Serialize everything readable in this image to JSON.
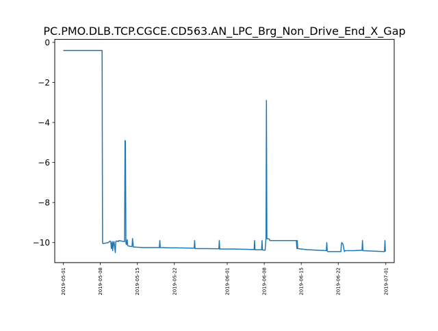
{
  "chart_data": {
    "type": "line",
    "title": "PC.PMO.DLB.TCP.CGCE.CD563.AN_LPC_Brg_Non_Drive_End_X_Gap",
    "xlabel": "",
    "ylabel": "",
    "ylim": [
      -11.0,
      0.15
    ],
    "xlim": [
      "2019-04-29T09:00",
      "2019-07-02T14:00"
    ],
    "yticks": [
      0,
      -2,
      -4,
      -6,
      -8,
      -10
    ],
    "xticks": [
      "2019-05-01",
      "2019-05-08",
      "2019-05-15",
      "2019-05-22",
      "2019-06-01",
      "2019-06-08",
      "2019-06-15",
      "2019-06-22",
      "2019-07-01"
    ],
    "grid": false,
    "line_color": "#1f77b4",
    "series": [
      {
        "x": [
          "2019-05-01T00:00",
          "2019-05-08T08:00",
          "2019-05-08T10:00",
          "2019-05-08T12:00",
          "2019-05-09T12:00",
          "2019-05-09T20:00",
          "2019-05-10T00:00",
          "2019-05-10T02:00",
          "2019-05-10T06:00",
          "2019-05-10T08:00",
          "2019-05-10T12:00",
          "2019-05-10T14:00",
          "2019-05-10T20:00",
          "2019-05-10T22:00",
          "2019-05-11T02:00",
          "2019-05-11T10:00",
          "2019-05-11T12:00",
          "2019-05-12T14:00",
          "2019-05-12T16:00",
          "2019-05-12T18:00",
          "2019-05-12T20:00",
          "2019-05-12T22:00",
          "2019-05-13T02:00",
          "2019-05-13T04:00",
          "2019-05-13T10:00",
          "2019-05-14T00:00",
          "2019-05-14T02:00",
          "2019-05-14T06:00",
          "2019-05-16T00:00",
          "2019-05-18T00:00",
          "2019-05-19T04:00",
          "2019-05-19T06:00",
          "2019-05-19T08:00",
          "2019-05-21T00:00",
          "2019-05-24T00:00",
          "2019-05-25T18:00",
          "2019-05-25T20:00",
          "2019-05-25T22:00",
          "2019-05-28T00:00",
          "2019-05-30T10:00",
          "2019-05-30T12:00",
          "2019-05-30T14:00",
          "2019-06-02T00:00",
          "2019-06-05T00:00",
          "2019-06-06T02:00",
          "2019-06-06T04:00",
          "2019-06-06T06:00",
          "2019-06-07T12:00",
          "2019-06-07T14:00",
          "2019-06-07T16:00",
          "2019-06-08T04:00",
          "2019-06-08T08:00",
          "2019-06-08T10:00",
          "2019-06-08T12:00",
          "2019-06-08T22:00",
          "2019-06-09T00:00",
          "2019-06-09T02:00",
          "2019-06-10T00:00",
          "2019-06-12T00:00",
          "2019-06-14T02:00",
          "2019-06-14T04:00",
          "2019-06-14T06:00",
          "2019-06-14T08:00",
          "2019-06-16T00:00",
          "2019-06-18T00:00",
          "2019-06-19T18:00",
          "2019-06-19T20:00",
          "2019-06-19T22:00",
          "2019-06-20T00:00",
          "2019-06-22T12:00",
          "2019-06-22T14:00",
          "2019-06-22T16:00",
          "2019-06-22T20:00",
          "2019-06-22T22:00",
          "2019-06-23T02:00",
          "2019-06-23T04:00",
          "2019-06-23T08:00",
          "2019-06-25T00:00",
          "2019-06-26T12:00",
          "2019-06-26T14:00",
          "2019-06-26T16:00",
          "2019-06-28T00:00",
          "2019-06-30T18:00",
          "2019-06-30T20:00",
          "2019-06-30T22:00"
        ],
        "y": [
          -0.4,
          -0.4,
          -10.0,
          -10.05,
          -10.0,
          -9.92,
          -10.0,
          -10.3,
          -9.95,
          -10.4,
          -10.0,
          -9.95,
          -10.5,
          -9.95,
          -9.92,
          -9.95,
          -9.9,
          -9.95,
          -4.9,
          -4.95,
          -10.0,
          -10.1,
          -9.85,
          -10.15,
          -10.18,
          -10.2,
          -9.8,
          -10.22,
          -10.25,
          -10.25,
          -10.25,
          -9.9,
          -10.25,
          -10.26,
          -10.27,
          -10.28,
          -9.9,
          -10.3,
          -10.3,
          -10.31,
          -9.9,
          -10.32,
          -10.32,
          -10.34,
          -10.35,
          -9.9,
          -10.36,
          -10.36,
          -9.9,
          -10.37,
          -10.38,
          -9.8,
          -2.9,
          -9.8,
          -9.82,
          -9.85,
          -9.9,
          -9.9,
          -9.9,
          -9.9,
          -10.3,
          -9.9,
          -10.3,
          -10.35,
          -10.38,
          -10.4,
          -10.0,
          -10.42,
          -10.45,
          -10.45,
          -10.1,
          -10.0,
          -10.05,
          -10.1,
          -10.35,
          -10.45,
          -10.4,
          -10.4,
          -10.38,
          -9.9,
          -10.4,
          -10.42,
          -10.45,
          -9.9,
          -10.45
        ]
      }
    ]
  }
}
